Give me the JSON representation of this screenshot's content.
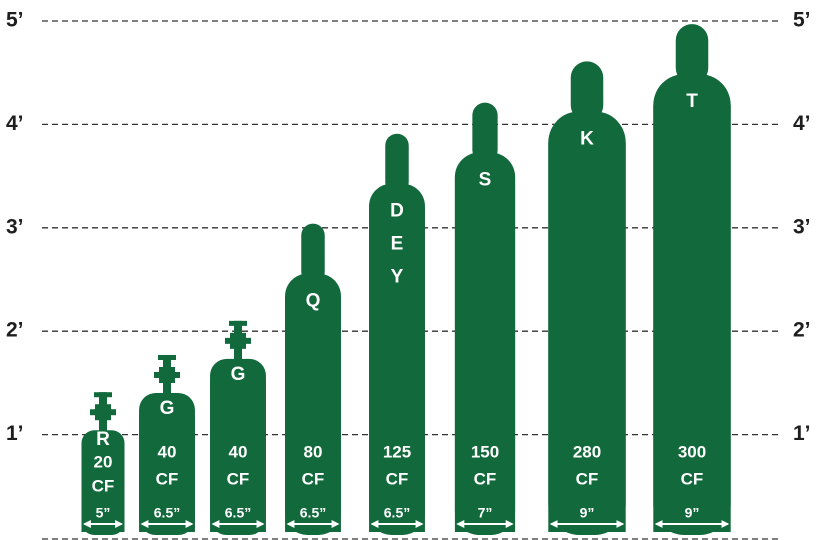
{
  "chart_data": {
    "type": "cylinder",
    "categories": [
      [
        "R"
      ],
      [
        "G"
      ],
      [
        "G"
      ],
      [
        "Q"
      ],
      [
        "D",
        "E",
        "Y"
      ],
      [
        "S"
      ],
      [
        "K"
      ],
      [
        "T"
      ]
    ],
    "values": [
      1.41,
      1.77,
      2.1,
      3.04,
      3.91,
      4.21,
      4.61,
      4.97
    ],
    "capacities": [
      20,
      40,
      40,
      80,
      125,
      150,
      280,
      300
    ],
    "capacity_unit": "CF",
    "diameters": [
      5,
      6.5,
      6.5,
      6.5,
      6.5,
      7,
      9,
      9
    ],
    "diameter_labels": [
      "5”",
      "6.5”",
      "6.5”",
      "6.5”",
      "6.5”",
      "7”",
      "9”",
      "9”"
    ],
    "color": "#12693b",
    "ylim": [
      0,
      5
    ],
    "yticks": [
      {
        "value": 1,
        "label": "1’"
      },
      {
        "value": 2,
        "label": "2’"
      },
      {
        "value": 3,
        "label": "3’"
      },
      {
        "value": 4,
        "label": "4’"
      },
      {
        "value": 5,
        "label": "5’"
      }
    ],
    "grid": true
  }
}
